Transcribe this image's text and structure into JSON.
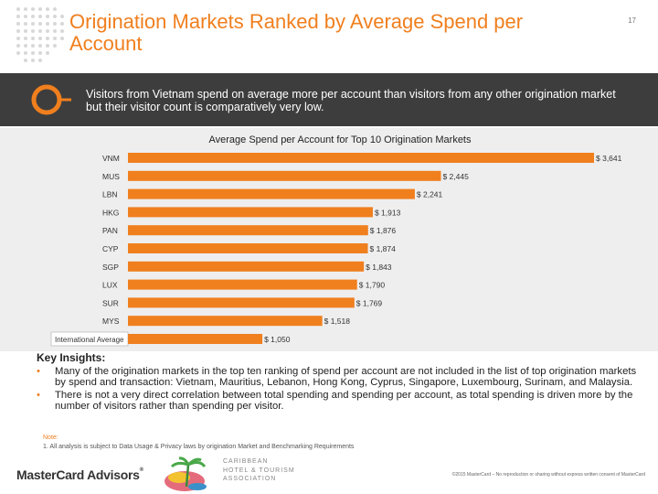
{
  "header": {
    "title": "Origination Markets Ranked by Average Spend per Account",
    "page_number": "17"
  },
  "banner": {
    "text": "Visitors from Vietnam spend on average more per account than visitors from any other origination market but their visitor count is comparatively very low."
  },
  "chart_data": {
    "type": "bar",
    "orientation": "horizontal",
    "title": "Average Spend per Account for Top 10 Origination Markets",
    "categories": [
      "VNM",
      "MUS",
      "LBN",
      "HKG",
      "PAN",
      "CYP",
      "SGP",
      "LUX",
      "SUR",
      "MYS",
      "International Average"
    ],
    "values": [
      3641,
      2445,
      2241,
      1913,
      1876,
      1874,
      1843,
      1790,
      1769,
      1518,
      1050
    ],
    "data_labels": [
      "$ 3,641",
      "$ 2,445",
      "$ 2,241",
      "$ 1,913",
      "$ 1,876",
      "$ 1,874",
      "$ 1,843",
      "$ 1,790",
      "$ 1,769",
      "$ 1,518",
      "$ 1,050"
    ],
    "xlim": [
      0,
      3641
    ],
    "bar_color": "#f07f1e",
    "background_color": "#eeeeee"
  },
  "insights": {
    "title": "Key Insights:",
    "items": [
      "Many of the origination markets in the top ten ranking of spend per account are not included in the list of top origination markets by spend and transaction: Vietnam, Mauritius, Lebanon, Hong Kong, Cyprus, Singapore, Luxembourg, Surinam, and Malaysia.",
      "There is not a very direct correlation between total spending and spending per account, as total spending is driven more by the number of visitors rather than spending per visitor."
    ]
  },
  "note": {
    "label": "Note:",
    "text": "1. All analysis is subject to Data Usage & Privacy laws by origination Market and Benchmarking Requirements"
  },
  "footer": {
    "mastercard_logo": "MasterCard Advisors",
    "cht_logo_lines": [
      "CARIBBEAN",
      "HOTEL & TOURISM",
      "ASSOCIATION"
    ],
    "copyright": "©2015 MasterCard – No reproduction or sharing without express written consent of MasterCard"
  },
  "colors": {
    "accent": "#f07f1e",
    "banner": "#3d3d3d",
    "chart_background": "#eeeeee"
  }
}
